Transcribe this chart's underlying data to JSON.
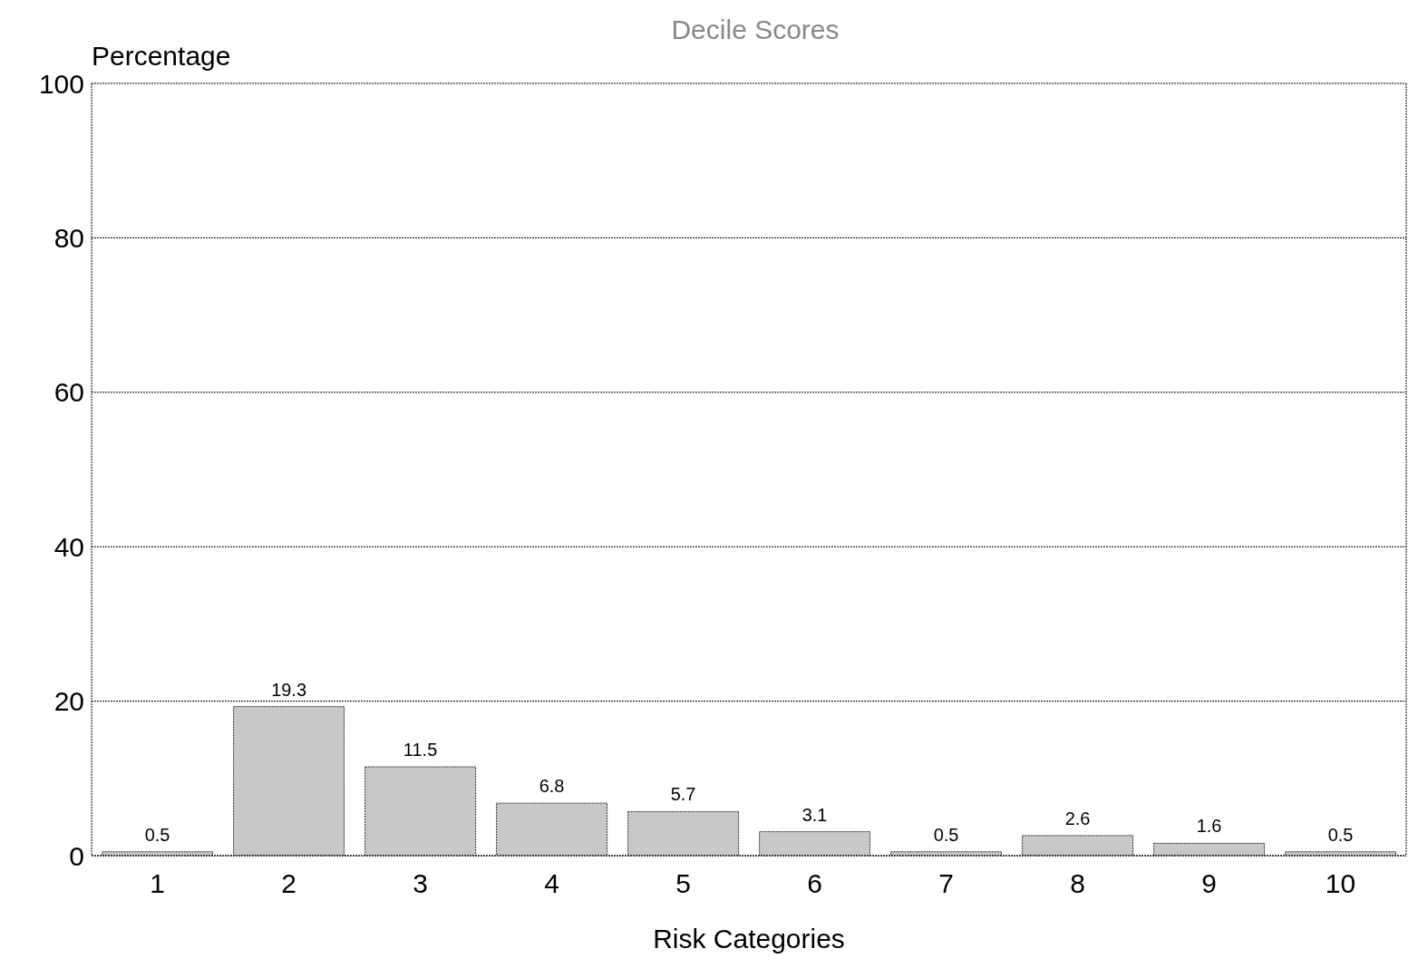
{
  "chart_data": {
    "type": "bar",
    "title": "Decile Scores",
    "xlabel": "Risk Categories",
    "ylabel": "Percentage",
    "categories": [
      "1",
      "2",
      "3",
      "4",
      "5",
      "6",
      "7",
      "8",
      "9",
      "10"
    ],
    "values": [
      0.5,
      19.3,
      11.5,
      6.8,
      5.7,
      3.1,
      0.5,
      2.6,
      1.6,
      0.5
    ],
    "color": "#c8c8c8",
    "ylim": [
      0,
      100
    ],
    "yticks": [
      0,
      20,
      40,
      60,
      80,
      100
    ],
    "grid": "y",
    "data_labels": true
  }
}
